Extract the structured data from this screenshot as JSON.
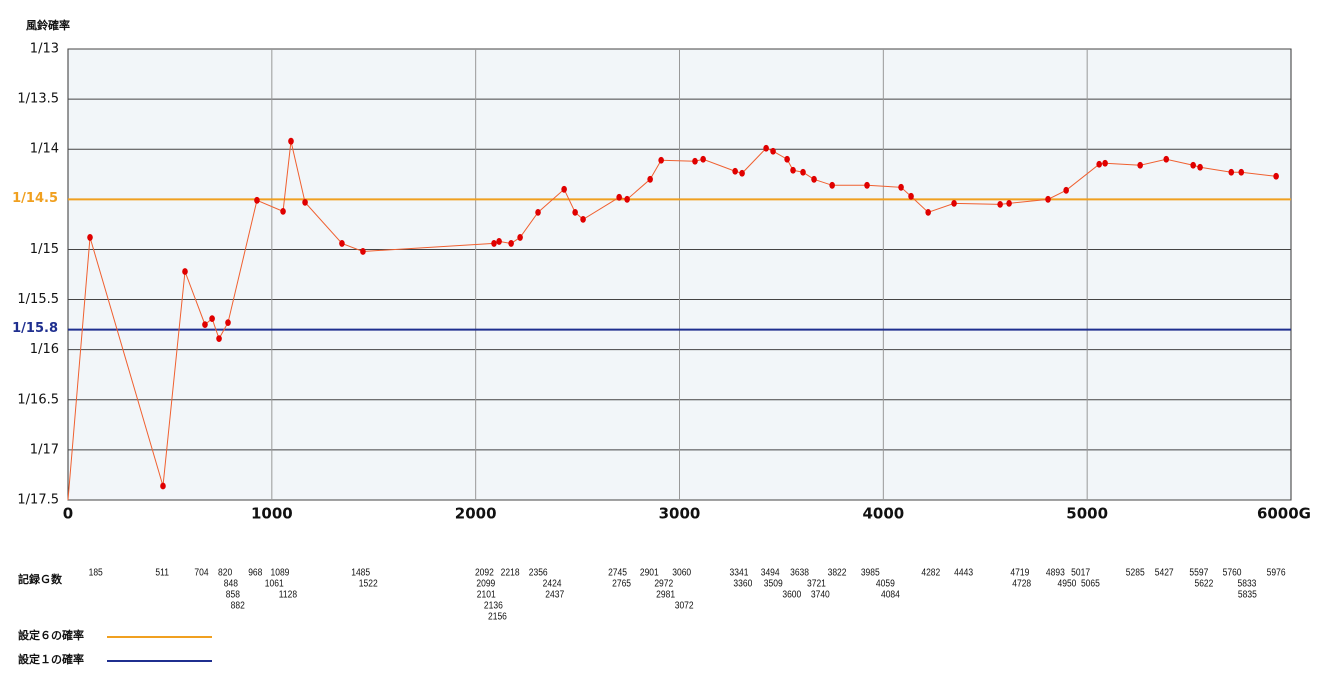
{
  "chart_data": {
    "type": "line",
    "y_label": "風鈴確率",
    "ylim": [
      17.5,
      13
    ],
    "yticks": [
      {
        "value": 13,
        "label": "1/13"
      },
      {
        "value": 13.5,
        "label": "1/13.5"
      },
      {
        "value": 14,
        "label": "1/14"
      },
      {
        "value": 14.5,
        "label": "1/14.5"
      },
      {
        "value": 15,
        "label": "1/15"
      },
      {
        "value": 15.5,
        "label": "1/15.5"
      },
      {
        "value": 16,
        "label": "1/16"
      },
      {
        "value": 16.5,
        "label": "1/16.5"
      },
      {
        "value": 17,
        "label": "1/17"
      },
      {
        "value": 17.5,
        "label": "1/17.5"
      }
    ],
    "xlim": [
      0,
      6000
    ],
    "xticks": [
      0,
      1000,
      2000,
      3000,
      4000,
      5000,
      {
        "value": 6000,
        "label": "6000G"
      }
    ],
    "grid": true,
    "series": [
      {
        "color": "#f06030",
        "marker_color": "#e00000",
        "x": [
          0,
          108,
          466,
          574,
          672,
          707,
          741,
          785,
          927,
          1055,
          1094,
          1163,
          1344,
          1447,
          2090,
          2115,
          2174,
          2218,
          2306,
          2434,
          2488,
          2527,
          2704,
          2743,
          2856,
          2910,
          3076,
          3116,
          3273,
          3307,
          3425,
          3459,
          3528,
          3557,
          3606,
          3660,
          3749,
          3920,
          4087,
          4136,
          4220,
          4347,
          4573,
          4617,
          4808,
          4897,
          5059,
          5088,
          5260,
          5388,
          5520,
          5554,
          5707,
          5756,
          5927
        ],
        "values": [
          17.5,
          14.88,
          17.36,
          15.22,
          15.75,
          15.69,
          15.89,
          15.73,
          14.51,
          14.62,
          13.92,
          14.53,
          14.94,
          15.02,
          14.94,
          14.92,
          14.94,
          14.88,
          14.63,
          14.4,
          14.63,
          14.7,
          14.48,
          14.5,
          14.3,
          14.11,
          14.12,
          14.1,
          14.22,
          14.24,
          13.99,
          14.02,
          14.1,
          14.21,
          14.23,
          14.3,
          14.36,
          14.36,
          14.38,
          14.47,
          14.63,
          14.54,
          14.55,
          14.54,
          14.5,
          14.41,
          14.15,
          14.14,
          14.16,
          14.1,
          14.16,
          14.18,
          14.23,
          14.23,
          14.27
        ]
      }
    ],
    "reference_lines": [
      {
        "name": "設定６の確率",
        "value": 14.5,
        "label": "1/14.5",
        "color": "#f0a020"
      },
      {
        "name": "設定１の確率",
        "value": 15.8,
        "label": "1/15.8",
        "color": "#1f2f8f"
      }
    ],
    "record_label": "記録Ｇ数",
    "record_g": [
      185,
      511,
      704,
      820,
      848,
      858,
      882,
      968,
      1061,
      1089,
      1128,
      1485,
      1522,
      2092,
      2099,
      2101,
      2136,
      2156,
      2218,
      2356,
      2424,
      2437,
      2745,
      2765,
      2901,
      2972,
      2981,
      3060,
      3072,
      3341,
      3360,
      3494,
      3509,
      3600,
      3638,
      3721,
      3740,
      3822,
      3985,
      4059,
      4084,
      4282,
      4443,
      4719,
      4728,
      4893,
      4950,
      5017,
      5065,
      5285,
      5427,
      5597,
      5622,
      5760,
      5833,
      5835,
      5976
    ]
  }
}
